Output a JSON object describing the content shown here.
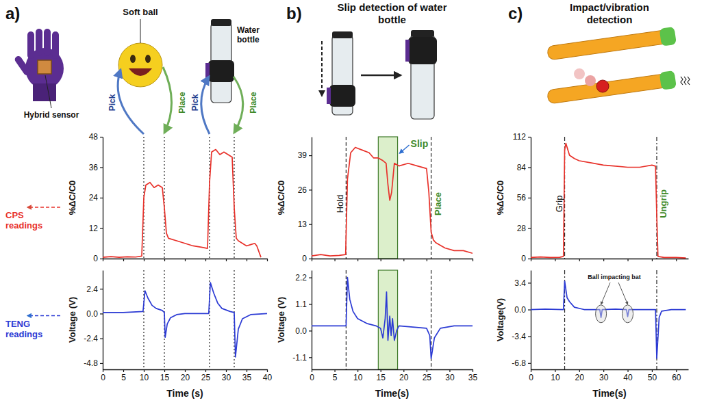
{
  "chart_data": [
    {
      "type": "line",
      "panel": "a)",
      "annotations": [
        "Hybrid sensor",
        "Soft ball",
        "Water bottle",
        "Pick",
        "Place",
        "Pick",
        "Place"
      ],
      "readings_label": "CPS readings",
      "y_label": "%ΔC/C0",
      "x": [
        0,
        2,
        4,
        6,
        8,
        9.5,
        10,
        10.5,
        11.5,
        12.5,
        13.5,
        14.5,
        15,
        15.5,
        16,
        18,
        20,
        22,
        24,
        25.5,
        26,
        26.5,
        27.5,
        28.5,
        29.5,
        30.5,
        31.5,
        32,
        32.5,
        33,
        34,
        35,
        36,
        37,
        37.5,
        38.5
      ],
      "values": [
        0.5,
        0.8,
        0.5,
        0.7,
        0.6,
        1,
        24,
        29,
        30,
        28,
        29,
        28,
        20,
        10,
        8,
        7,
        6,
        5,
        4.5,
        4,
        30,
        42,
        43,
        41,
        42,
        41,
        40,
        20,
        8,
        7,
        6,
        5,
        5.5,
        6,
        5,
        0.5
      ],
      "color": "#e8322b",
      "xlim": [
        0,
        40
      ],
      "ylim": [
        0,
        48
      ],
      "xticks": [
        0,
        5,
        10,
        15,
        20,
        25,
        30,
        35,
        40
      ],
      "yticks": [
        0,
        12,
        24,
        36,
        48
      ],
      "tick_labels": "y",
      "vlines": [
        {
          "x": 10
        },
        {
          "x": 15
        },
        {
          "x": 26
        },
        {
          "x": 32
        }
      ]
    },
    {
      "type": "line",
      "readings_label": "TENG readings",
      "x_label": "Time (s)",
      "y_label": "Voltage (V)",
      "x": [
        0,
        5,
        9.8,
        10.3,
        11,
        12,
        13,
        14.5,
        15,
        15.2,
        15.7,
        16.5,
        18,
        20,
        25.8,
        26.2,
        27,
        28,
        29,
        31,
        32,
        32.3,
        33,
        34,
        36,
        40
      ],
      "values": [
        0.1,
        0.1,
        0.2,
        2.2,
        1.5,
        0.8,
        0.5,
        0.3,
        0.1,
        -2.3,
        -1.0,
        -0.4,
        -0.1,
        0,
        0,
        3.0,
        2.0,
        1.0,
        0.5,
        0.2,
        0.1,
        -4.2,
        -1.5,
        -0.5,
        -0.1,
        0
      ],
      "color": "#2b3ad4",
      "xlim": [
        0,
        40
      ],
      "ylim": [
        -5.4,
        4.2
      ],
      "xticks": [
        0,
        5,
        10,
        15,
        20,
        25,
        30,
        35,
        40
      ],
      "yticks": [
        -4.8,
        -2.4,
        {
          "value": 0,
          "label": "0.0"
        },
        2.4
      ],
      "vlines": [
        {
          "x": 10
        },
        {
          "x": 15
        },
        {
          "x": 26
        },
        {
          "x": 32
        }
      ]
    },
    {
      "type": "line",
      "panel": "b)",
      "title": "Slip detection of water bottle",
      "y_label": "%ΔC/C0",
      "x": [
        0,
        2,
        4,
        6,
        7.4,
        7.8,
        8.5,
        9.5,
        11,
        12.5,
        13.5,
        14.5,
        15.5,
        16.2,
        16.6,
        17,
        17.4,
        18,
        19,
        21,
        23,
        25,
        25.5,
        26,
        26.5,
        27,
        29,
        31,
        33,
        35
      ],
      "values": [
        1,
        1.5,
        1,
        1.2,
        1.5,
        30,
        40,
        42,
        41,
        40,
        38,
        38,
        37,
        36,
        28,
        22,
        25,
        36,
        35,
        36,
        35,
        34,
        25,
        10,
        7,
        6,
        4,
        3,
        3,
        2
      ],
      "color": "#e8322b",
      "xlim": [
        0,
        35
      ],
      "ylim": [
        0,
        46
      ],
      "xticks": [
        0,
        5,
        10,
        15,
        20,
        25,
        30,
        35
      ],
      "yticks": [
        0,
        13,
        26,
        39
      ],
      "tick_labels": "y",
      "vlines": [
        {
          "x": 7.5,
          "label": "Hold"
        },
        {
          "x": 26,
          "label": "Place"
        }
      ],
      "highlight": {
        "x": [
          14.5,
          18.7
        ],
        "label": "Slip"
      }
    },
    {
      "type": "line",
      "x_label": "Time(s)",
      "y_label": "Voltage (V)",
      "x": [
        0,
        4,
        7.5,
        7.8,
        8.3,
        9,
        10,
        12,
        14,
        15,
        15.5,
        16,
        16.3,
        16.6,
        17,
        17.3,
        17.6,
        18,
        18.5,
        19,
        22,
        25,
        25.7,
        26,
        26.7,
        28,
        31,
        35
      ],
      "values": [
        0.2,
        0.2,
        0.2,
        2.2,
        1.3,
        0.8,
        0.5,
        0.3,
        0.2,
        0.1,
        -0.3,
        0.5,
        1.6,
        -0.4,
        0.6,
        -0.2,
        0.5,
        -0.4,
        0,
        0.2,
        0.15,
        0.1,
        -0.2,
        -1.15,
        -0.3,
        0.1,
        0.2,
        0.2
      ],
      "color": "#2b3ad4",
      "xlim": [
        0,
        35
      ],
      "ylim": [
        -1.6,
        2.5
      ],
      "xticks": [
        0,
        5,
        10,
        15,
        20,
        25,
        30,
        35
      ],
      "yticks": [
        -1.1,
        {
          "value": 0,
          "label": "0.0"
        },
        1.1,
        2.2
      ],
      "vlines": [
        {
          "x": 7.5
        },
        {
          "x": 26
        }
      ],
      "highlight": {
        "x": [
          14.5,
          18.7
        ]
      }
    },
    {
      "type": "line",
      "panel": "c)",
      "title": "Impact/vibration detection",
      "y_label": "%ΔC/C0",
      "x": [
        0,
        4,
        8,
        12,
        13.5,
        14,
        14.5,
        16,
        18,
        20,
        25,
        30,
        35,
        40,
        45,
        50,
        51.5,
        52,
        52.5,
        55,
        60,
        64
      ],
      "values": [
        1,
        1.5,
        1,
        1.2,
        2,
        100,
        106,
        95,
        92,
        90,
        88,
        86,
        85,
        84,
        84,
        86,
        85,
        40,
        2,
        1,
        1,
        0.5
      ],
      "color": "#e8322b",
      "xlim": [
        0,
        65
      ],
      "ylim": [
        0,
        112
      ],
      "xticks": [
        0,
        10,
        20,
        30,
        40,
        50,
        60
      ],
      "yticks": [
        0,
        28,
        56,
        84,
        112
      ],
      "tick_labels": "y",
      "vlines": [
        {
          "x": 14,
          "label": "Grip"
        },
        {
          "x": 52,
          "label": "Ungrip"
        }
      ]
    },
    {
      "type": "line",
      "x_label": "Time(s)",
      "y_label": "Voltage(V)",
      "x": [
        0,
        6,
        13.5,
        14,
        15,
        16,
        18,
        22,
        28.5,
        29,
        29.5,
        35,
        39.5,
        40,
        40.5,
        46,
        51.5,
        52,
        53,
        54,
        58,
        64
      ],
      "values": [
        0,
        0.05,
        0,
        3.6,
        1.5,
        1.0,
        0.3,
        0,
        0,
        -1.0,
        0,
        0.05,
        0,
        -0.9,
        0,
        0,
        0,
        -6.2,
        -1,
        -0.2,
        0,
        0
      ],
      "color": "#2b3ad4",
      "xlim": [
        0,
        65
      ],
      "ylim": [
        -7.6,
        5.0
      ],
      "xticks": [
        0,
        10,
        20,
        30,
        40,
        50,
        60
      ],
      "yticks": [
        -6.8,
        -3.4,
        {
          "value": 0,
          "label": "0.0"
        },
        3.4
      ],
      "vlines": [
        {
          "x": 14
        },
        {
          "x": 52
        }
      ],
      "callout": {
        "text": "Ball impacting bat",
        "x": [
          29,
          40
        ]
      }
    }
  ]
}
